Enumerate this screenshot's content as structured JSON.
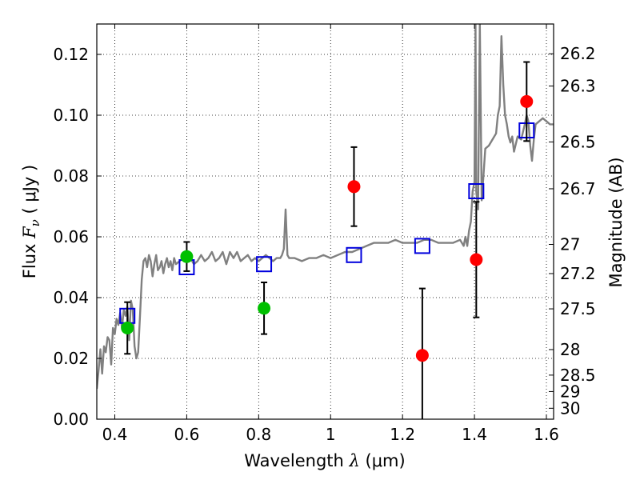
{
  "chart_data": {
    "type": "scatter",
    "xlabel": {
      "prefix": "Wavelength  ",
      "symbol": "λ",
      "suffix": " (μm)"
    },
    "ylabel": {
      "prefix": "Flux  ",
      "symbol": "F",
      "subscript": "ν",
      "suffix": "  ( μJy )"
    },
    "ylabel_right": "Magnitude (AB)",
    "xlim": [
      0.35,
      1.62
    ],
    "ylim": [
      0.0,
      0.13
    ],
    "grid": "dotted",
    "xticks": [
      {
        "value": 0.4,
        "label": "0.4"
      },
      {
        "value": 0.6,
        "label": "0.6"
      },
      {
        "value": 0.8,
        "label": "0.8"
      },
      {
        "value": 1.0,
        "label": "1"
      },
      {
        "value": 1.2,
        "label": "1.2"
      },
      {
        "value": 1.4,
        "label": "1.4"
      },
      {
        "value": 1.6,
        "label": "1.6"
      }
    ],
    "yticks": [
      {
        "value": 0.0,
        "label": "0.00"
      },
      {
        "value": 0.02,
        "label": "0.02"
      },
      {
        "value": 0.04,
        "label": "0.04"
      },
      {
        "value": 0.06,
        "label": "0.06"
      },
      {
        "value": 0.08,
        "label": "0.08"
      },
      {
        "value": 0.1,
        "label": "0.10"
      },
      {
        "value": 0.12,
        "label": "0.12"
      }
    ],
    "right_ticks": [
      {
        "label": "26.2",
        "flux": 0.1202
      },
      {
        "label": "26.3",
        "flux": 0.1096
      },
      {
        "label": "26.5",
        "flux": 0.0912
      },
      {
        "label": "26.7",
        "flux": 0.0758
      },
      {
        "label": "27",
        "flux": 0.0575
      },
      {
        "label": "27.2",
        "flux": 0.0479
      },
      {
        "label": "27.5",
        "flux": 0.0363
      },
      {
        "label": "28",
        "flux": 0.0229
      },
      {
        "label": "28.5",
        "flux": 0.0145
      },
      {
        "label": "29",
        "flux": 0.0091
      },
      {
        "label": "30",
        "flux": 0.0036
      }
    ],
    "series": [
      {
        "kind": "line",
        "color": "#808080",
        "points": [
          [
            0.35,
            0.01
          ],
          [
            0.355,
            0.016
          ],
          [
            0.36,
            0.023
          ],
          [
            0.365,
            0.015
          ],
          [
            0.37,
            0.024
          ],
          [
            0.375,
            0.022
          ],
          [
            0.38,
            0.027
          ],
          [
            0.385,
            0.026
          ],
          [
            0.39,
            0.018
          ],
          [
            0.395,
            0.03
          ],
          [
            0.4,
            0.028
          ],
          [
            0.405,
            0.033
          ],
          [
            0.41,
            0.031
          ],
          [
            0.415,
            0.035
          ],
          [
            0.42,
            0.03
          ],
          [
            0.425,
            0.036
          ],
          [
            0.43,
            0.034
          ],
          [
            0.435,
            0.037
          ],
          [
            0.44,
            0.026
          ],
          [
            0.445,
            0.039
          ],
          [
            0.45,
            0.036
          ],
          [
            0.455,
            0.024
          ],
          [
            0.46,
            0.02
          ],
          [
            0.465,
            0.022
          ],
          [
            0.47,
            0.034
          ],
          [
            0.475,
            0.046
          ],
          [
            0.48,
            0.052
          ],
          [
            0.485,
            0.053
          ],
          [
            0.49,
            0.05
          ],
          [
            0.495,
            0.054
          ],
          [
            0.5,
            0.052
          ],
          [
            0.505,
            0.047
          ],
          [
            0.51,
            0.051
          ],
          [
            0.515,
            0.054
          ],
          [
            0.52,
            0.049
          ],
          [
            0.525,
            0.05
          ],
          [
            0.53,
            0.052
          ],
          [
            0.535,
            0.048
          ],
          [
            0.54,
            0.051
          ],
          [
            0.545,
            0.053
          ],
          [
            0.55,
            0.05
          ],
          [
            0.555,
            0.052
          ],
          [
            0.56,
            0.049
          ],
          [
            0.565,
            0.053
          ],
          [
            0.57,
            0.051
          ],
          [
            0.58,
            0.052
          ],
          [
            0.59,
            0.053
          ],
          [
            0.6,
            0.052
          ],
          [
            0.61,
            0.053
          ],
          [
            0.62,
            0.051
          ],
          [
            0.63,
            0.052
          ],
          [
            0.64,
            0.054
          ],
          [
            0.65,
            0.052
          ],
          [
            0.66,
            0.053
          ],
          [
            0.67,
            0.055
          ],
          [
            0.68,
            0.052
          ],
          [
            0.69,
            0.053
          ],
          [
            0.7,
            0.055
          ],
          [
            0.71,
            0.051
          ],
          [
            0.72,
            0.055
          ],
          [
            0.73,
            0.053
          ],
          [
            0.74,
            0.055
          ],
          [
            0.75,
            0.052
          ],
          [
            0.76,
            0.053
          ],
          [
            0.77,
            0.054
          ],
          [
            0.78,
            0.052
          ],
          [
            0.79,
            0.053
          ],
          [
            0.8,
            0.052
          ],
          [
            0.81,
            0.053
          ],
          [
            0.82,
            0.054
          ],
          [
            0.83,
            0.053
          ],
          [
            0.84,
            0.052
          ],
          [
            0.85,
            0.053
          ],
          [
            0.86,
            0.053
          ],
          [
            0.865,
            0.054
          ],
          [
            0.87,
            0.056
          ],
          [
            0.875,
            0.069
          ],
          [
            0.88,
            0.054
          ],
          [
            0.885,
            0.053
          ],
          [
            0.89,
            0.053
          ],
          [
            0.9,
            0.053
          ],
          [
            0.92,
            0.052
          ],
          [
            0.94,
            0.053
          ],
          [
            0.96,
            0.053
          ],
          [
            0.98,
            0.054
          ],
          [
            1.0,
            0.053
          ],
          [
            1.02,
            0.054
          ],
          [
            1.04,
            0.055
          ],
          [
            1.06,
            0.055
          ],
          [
            1.08,
            0.056
          ],
          [
            1.1,
            0.057
          ],
          [
            1.12,
            0.058
          ],
          [
            1.14,
            0.058
          ],
          [
            1.16,
            0.058
          ],
          [
            1.18,
            0.059
          ],
          [
            1.2,
            0.058
          ],
          [
            1.22,
            0.058
          ],
          [
            1.24,
            0.058
          ],
          [
            1.26,
            0.059
          ],
          [
            1.28,
            0.059
          ],
          [
            1.3,
            0.058
          ],
          [
            1.32,
            0.058
          ],
          [
            1.34,
            0.058
          ],
          [
            1.36,
            0.059
          ],
          [
            1.37,
            0.057
          ],
          [
            1.375,
            0.06
          ],
          [
            1.38,
            0.057
          ],
          [
            1.385,
            0.062
          ],
          [
            1.39,
            0.065
          ],
          [
            1.395,
            0.075
          ],
          [
            1.4,
            0.078
          ],
          [
            1.403,
            0.13
          ],
          [
            1.405,
            0.075
          ],
          [
            1.41,
            0.069
          ],
          [
            1.415,
            0.13
          ],
          [
            1.42,
            0.072
          ],
          [
            1.425,
            0.08
          ],
          [
            1.43,
            0.089
          ],
          [
            1.44,
            0.09
          ],
          [
            1.45,
            0.092
          ],
          [
            1.46,
            0.094
          ],
          [
            1.465,
            0.1
          ],
          [
            1.47,
            0.103
          ],
          [
            1.475,
            0.126
          ],
          [
            1.48,
            0.11
          ],
          [
            1.485,
            0.1
          ],
          [
            1.49,
            0.097
          ],
          [
            1.495,
            0.093
          ],
          [
            1.5,
            0.091
          ],
          [
            1.505,
            0.093
          ],
          [
            1.51,
            0.088
          ],
          [
            1.52,
            0.093
          ],
          [
            1.53,
            0.092
          ],
          [
            1.54,
            0.097
          ],
          [
            1.545,
            0.1
          ],
          [
            1.55,
            0.098
          ],
          [
            1.555,
            0.09
          ],
          [
            1.56,
            0.085
          ],
          [
            1.565,
            0.092
          ],
          [
            1.57,
            0.097
          ],
          [
            1.58,
            0.098
          ],
          [
            1.59,
            0.099
          ],
          [
            1.6,
            0.098
          ],
          [
            1.61,
            0.097
          ],
          [
            1.62,
            0.097
          ]
        ]
      },
      {
        "kind": "square",
        "color": "#0000dd",
        "points": [
          [
            0.435,
            0.034
          ],
          [
            0.6,
            0.05
          ],
          [
            0.815,
            0.051
          ],
          [
            1.065,
            0.054
          ],
          [
            1.255,
            0.057
          ],
          [
            1.405,
            0.075
          ],
          [
            1.545,
            0.095
          ]
        ]
      },
      {
        "kind": "circle",
        "color": "#00c000",
        "points": [
          {
            "x": 0.435,
            "y": 0.03,
            "err": 0.0085
          },
          {
            "x": 0.6,
            "y": 0.0535,
            "err": 0.0048
          },
          {
            "x": 0.815,
            "y": 0.0365,
            "err": 0.0085
          }
        ]
      },
      {
        "kind": "circle",
        "color": "#ff0000",
        "points": [
          {
            "x": 1.065,
            "y": 0.0765,
            "err": 0.013
          },
          {
            "x": 1.255,
            "y": 0.021,
            "err": 0.022
          },
          {
            "x": 1.405,
            "y": 0.0525,
            "err": 0.019
          },
          {
            "x": 1.545,
            "y": 0.1045,
            "err": 0.013
          }
        ]
      }
    ]
  }
}
